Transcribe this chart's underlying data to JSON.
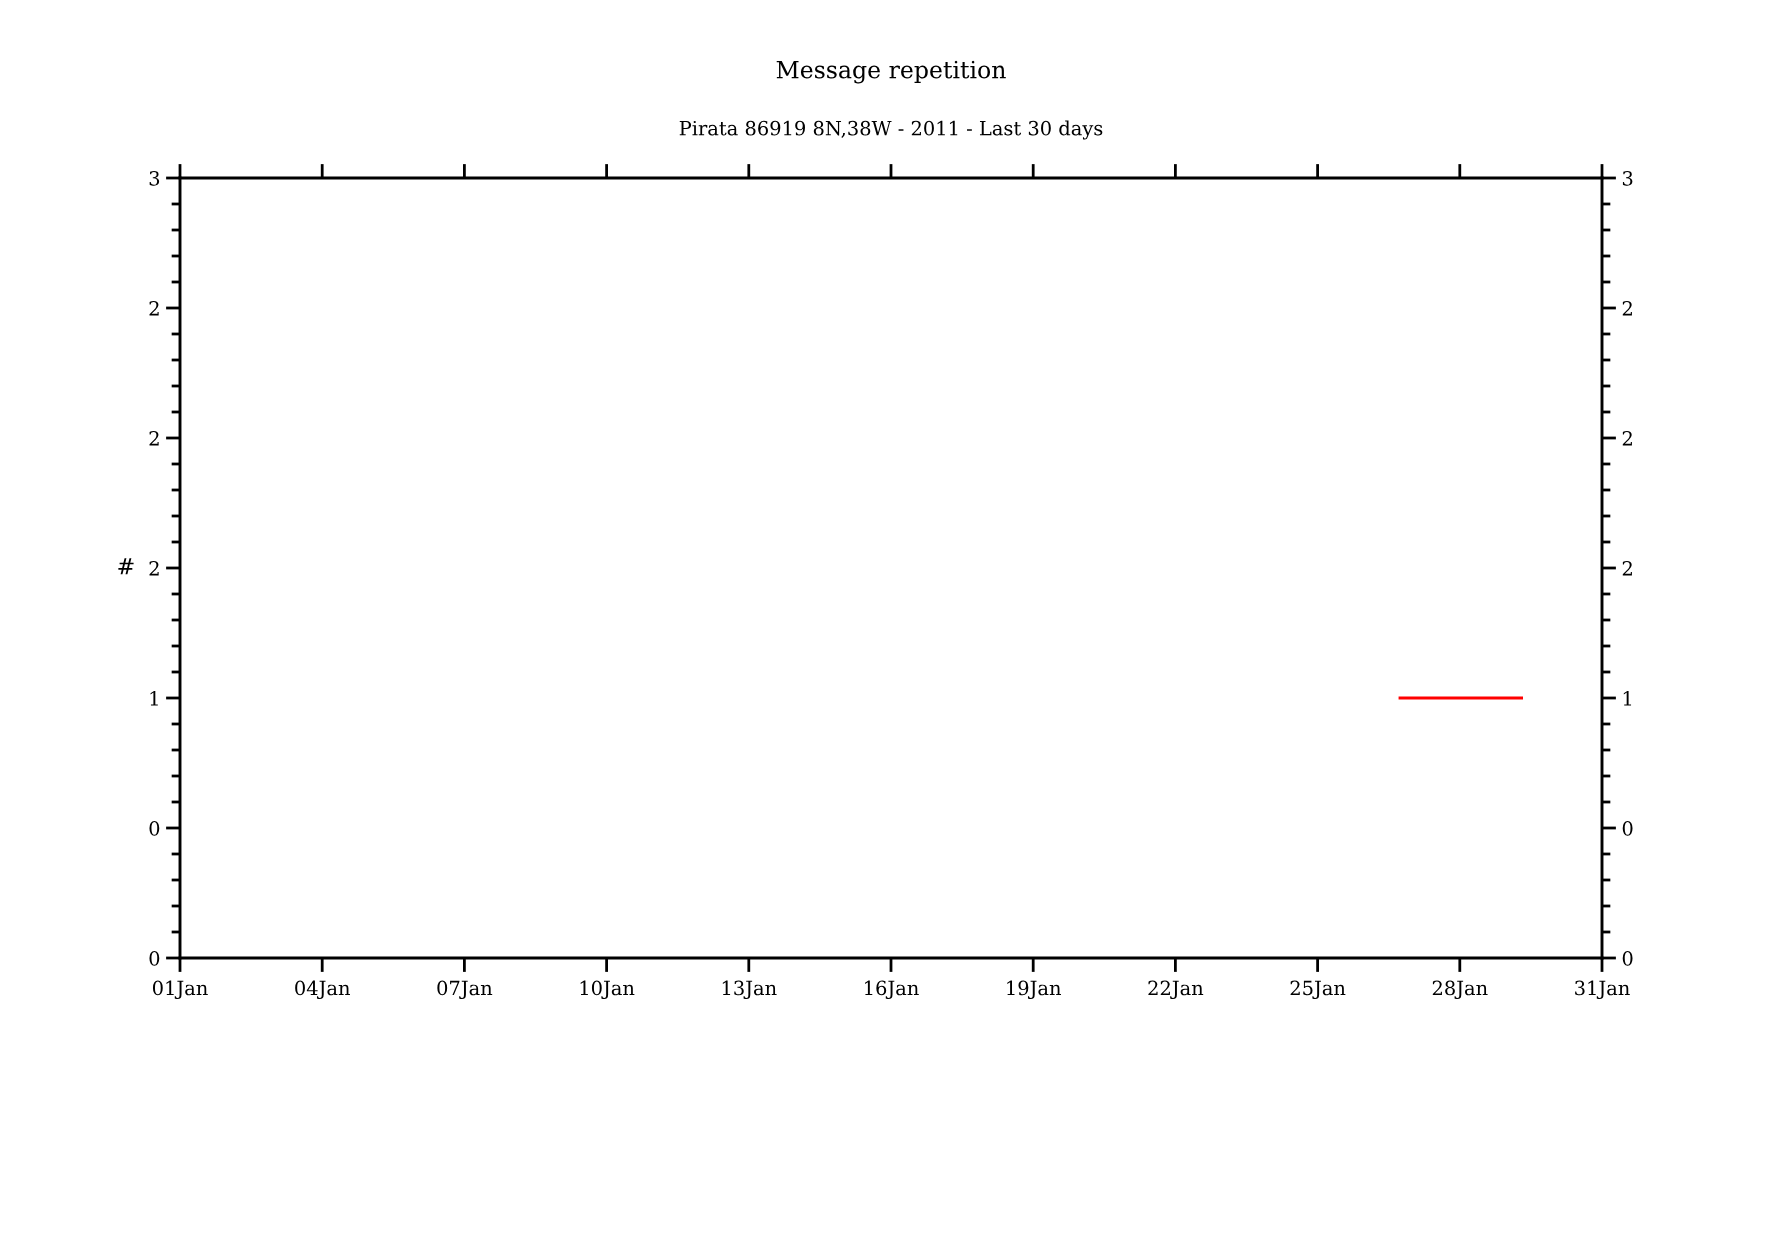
{
  "chart_data": {
    "type": "line",
    "title": "Message repetition",
    "subtitle": "Pirata 86919 8N,38W - 2011 - Last 30 days",
    "ylabel": "#",
    "x": [
      "2011-01-26T17:00",
      "2011-01-29T08:00"
    ],
    "series": [
      {
        "color": "#ff0000",
        "values": [
          1,
          1
        ]
      }
    ],
    "xlim": [
      "2011-01-01",
      "2011-01-31"
    ],
    "xticks": [
      {
        "value": "2011-01-01",
        "label": "01Jan"
      },
      {
        "value": "2011-01-04",
        "label": "04Jan"
      },
      {
        "value": "2011-01-07",
        "label": "07Jan"
      },
      {
        "value": "2011-01-10",
        "label": "10Jan"
      },
      {
        "value": "2011-01-13",
        "label": "13Jan"
      },
      {
        "value": "2011-01-16",
        "label": "16Jan"
      },
      {
        "value": "2011-01-19",
        "label": "19Jan"
      },
      {
        "value": "2011-01-22",
        "label": "22Jan"
      },
      {
        "value": "2011-01-25",
        "label": "25Jan"
      },
      {
        "value": "2011-01-28",
        "label": "28Jan"
      },
      {
        "value": "2011-01-31",
        "label": "31Jan"
      }
    ],
    "ylim": [
      0,
      3
    ],
    "yticks": [
      0,
      {
        "value": 0.5,
        "label": "0"
      },
      1,
      {
        "value": 1.5,
        "label": "2"
      },
      2,
      {
        "value": 2.5,
        "label": "2"
      },
      3
    ],
    "y2lim": [
      0,
      3
    ],
    "y2ticks": [
      0,
      {
        "value": 0.5,
        "label": "0"
      },
      1,
      {
        "value": 1.5,
        "label": "2"
      },
      2,
      {
        "value": 2.5,
        "label": "2"
      },
      3
    ]
  }
}
